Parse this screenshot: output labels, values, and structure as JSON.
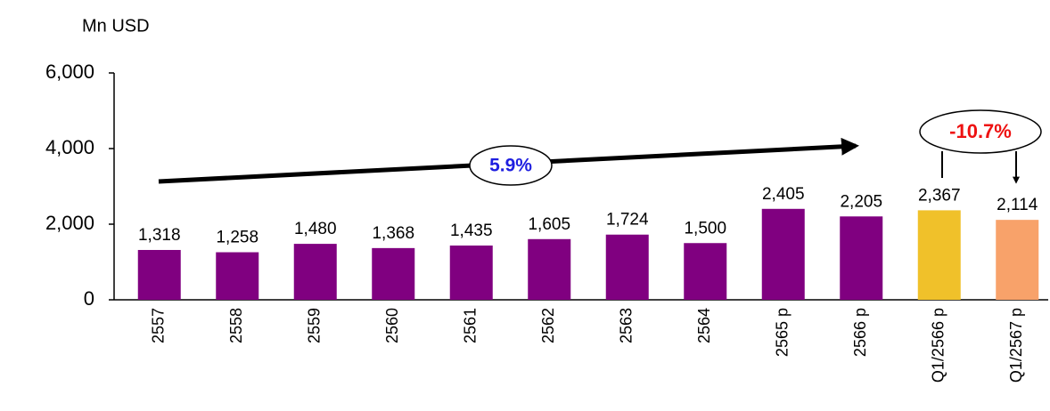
{
  "chart_data": {
    "type": "bar",
    "unit_label": "Mn USD",
    "categories": [
      "2557",
      "2558",
      "2559",
      "2560",
      "2561",
      "2562",
      "2563",
      "2564",
      "2565 p",
      "2566 p",
      "Q1/2566 p",
      "Q1/2567 p"
    ],
    "values": [
      1318,
      1258,
      1480,
      1368,
      1435,
      1605,
      1724,
      1500,
      2405,
      2205,
      2367,
      2114
    ],
    "value_labels": [
      "1,318",
      "1,258",
      "1,480",
      "1,368",
      "1,435",
      "1,605",
      "1,724",
      "1,500",
      "2,405",
      "2,205",
      "2,367",
      "2,114"
    ],
    "colors": [
      "#800080",
      "#800080",
      "#800080",
      "#800080",
      "#800080",
      "#800080",
      "#800080",
      "#800080",
      "#800080",
      "#800080",
      "#f0c12a",
      "#f8a26a"
    ],
    "ylim": [
      0,
      6000
    ],
    "yticks": [
      0,
      {
        "value": 2000,
        "label": "2,000"
      },
      {
        "value": 4000,
        "label": "4,000"
      },
      {
        "value": 6000,
        "label": "6,000"
      }
    ],
    "annotations": [
      "5.9%",
      "-10.7%"
    ]
  }
}
